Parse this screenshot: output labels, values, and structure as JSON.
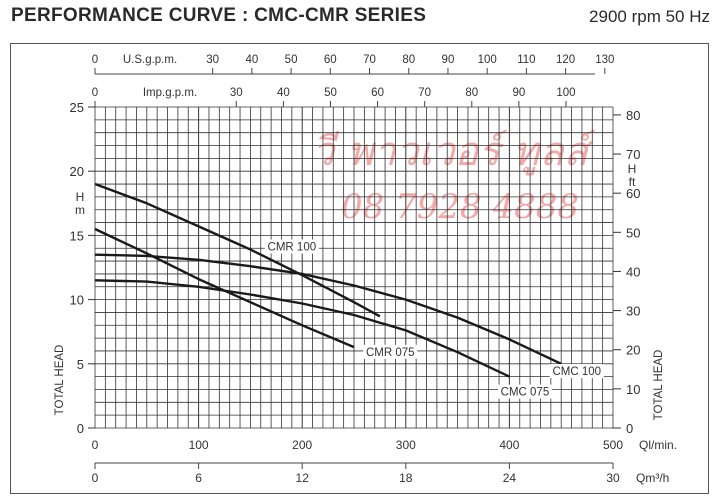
{
  "header": {
    "title": "PERFORMANCE CURVE : CMC-CMR SERIES",
    "speed": "2900 rpm 50 Hz"
  },
  "watermark": {
    "line1": "วี พาวเวอร์ ทูลส์",
    "line2": "08 7928 4888",
    "color": "#f08c8c"
  },
  "axes": {
    "usgpm_label": "U.S.g.p.m.",
    "impgpm_label": "Imp.g.p.m.",
    "flow_lmin_unit": "Ql/min.",
    "flow_m3h_unit": "Qm³/h",
    "left_unit_h": "H",
    "left_unit_m": "m",
    "right_unit_h": "H",
    "right_unit_ft": "ft",
    "left_title": "TOTAL HEAD",
    "right_title": "TOTAL HEAD"
  },
  "chart_data": {
    "type": "line",
    "title": "PERFORMANCE CURVE : CMC-CMR SERIES",
    "subtitle": "2900 rpm 50 Hz",
    "xlabel": "Ql/min.",
    "ylabel": "TOTAL HEAD H m",
    "xlim": [
      0,
      500
    ],
    "ylim": [
      0,
      25
    ],
    "grid": true,
    "x_ticks_lmin": [
      0,
      100,
      200,
      300,
      400,
      500
    ],
    "x_ticks_m3h": [
      0,
      6,
      12,
      18,
      24,
      30
    ],
    "x_ticks_usgpm": [
      0,
      30,
      40,
      50,
      60,
      70,
      80,
      90,
      100,
      110,
      120,
      130
    ],
    "x_ticks_impgpm": [
      0,
      30,
      40,
      50,
      60,
      70,
      80,
      90,
      100
    ],
    "y_ticks_m": [
      0,
      5,
      10,
      15,
      20,
      25
    ],
    "y_ticks_ft": [
      0,
      10,
      20,
      30,
      40,
      50,
      60,
      70,
      80
    ],
    "series": [
      {
        "name": "CMR 100",
        "x": [
          0,
          50,
          100,
          150,
          200,
          250,
          275
        ],
        "y": [
          19,
          17.5,
          15.7,
          13.9,
          11.9,
          9.8,
          8.7
        ]
      },
      {
        "name": "CMR 075",
        "x": [
          0,
          50,
          100,
          150,
          200,
          250
        ],
        "y": [
          15.5,
          13.6,
          11.6,
          9.8,
          8.0,
          6.3
        ]
      },
      {
        "name": "CMC 100",
        "x": [
          0,
          50,
          100,
          150,
          200,
          250,
          300,
          350,
          400,
          450
        ],
        "y": [
          13.5,
          13.4,
          13.1,
          12.6,
          12.0,
          11.1,
          10.0,
          8.6,
          6.9,
          5.0
        ]
      },
      {
        "name": "CMC 075",
        "x": [
          0,
          50,
          100,
          150,
          200,
          250,
          300,
          350,
          400
        ],
        "y": [
          11.5,
          11.4,
          11.0,
          10.4,
          9.7,
          8.8,
          7.6,
          5.9,
          4.0
        ]
      }
    ],
    "labels": [
      {
        "text": "CMR 100",
        "x": 190,
        "y": 13.9
      },
      {
        "text": "CMR 075",
        "x": 285,
        "y": 5.7
      },
      {
        "text": "CMC 100",
        "x": 465,
        "y": 4.2
      },
      {
        "text": "CMC 075",
        "x": 415,
        "y": 2.6
      }
    ]
  }
}
